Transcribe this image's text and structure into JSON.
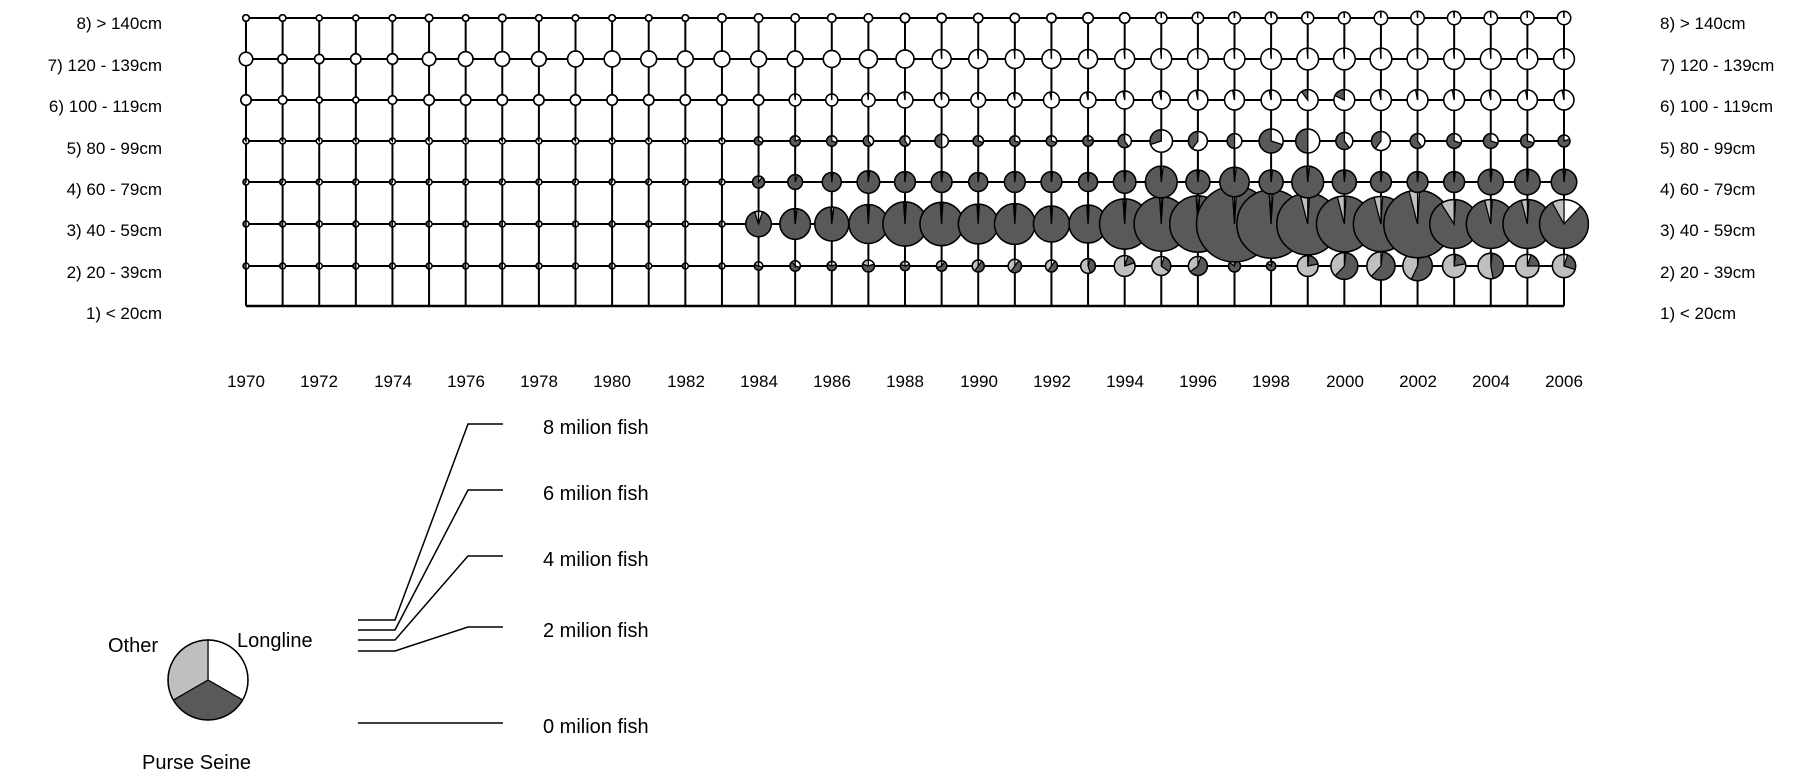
{
  "chart_data": {
    "type": "bubble-pie",
    "rows": [
      "1) < 20cm",
      "2) 20 - 39cm",
      "3) 40 - 59cm",
      "4) 60 - 79cm",
      "5) 80 - 99cm",
      "6) 100 - 119cm",
      "7) 120 - 139cm",
      "8) > 140cm"
    ],
    "years": [
      1970,
      1971,
      1972,
      1973,
      1974,
      1975,
      1976,
      1977,
      1978,
      1979,
      1980,
      1981,
      1982,
      1983,
      1984,
      1985,
      1986,
      1987,
      1988,
      1989,
      1990,
      1991,
      1992,
      1993,
      1994,
      1995,
      1996,
      1997,
      1998,
      1999,
      2000,
      2001,
      2002,
      2003,
      2004,
      2005,
      2006
    ],
    "year_tick_labels": [
      "1970",
      "1972",
      "1974",
      "1976",
      "1978",
      "1980",
      "1982",
      "1984",
      "1986",
      "1988",
      "1990",
      "1992",
      "1994",
      "1996",
      "1998",
      "2000",
      "2002",
      "2004",
      "2006"
    ],
    "legend_gears": [
      {
        "name": "Longline",
        "color": "#ffffff"
      },
      {
        "name": "Purse Seine",
        "color": "#595959"
      },
      {
        "name": "Other",
        "color": "#bfbfbf"
      }
    ],
    "size_legend": [
      {
        "label": "8 milion fish",
        "value": 8
      },
      {
        "label": "6 milion fish",
        "value": 6
      },
      {
        "label": "4 milion fish",
        "value": 4
      },
      {
        "label": "2 milion fish",
        "value": 2
      },
      {
        "label": "0 milion fish",
        "value": 0
      }
    ],
    "unit": "milion fish",
    "series": [
      {
        "row": "2) 20 - 39cm",
        "totals": [
          0.03,
          0.03,
          0.03,
          0.03,
          0.03,
          0.03,
          0.03,
          0.04,
          0.04,
          0.04,
          0.04,
          0.04,
          0.04,
          0.03,
          0.1,
          0.15,
          0.12,
          0.2,
          0.12,
          0.15,
          0.2,
          0.25,
          0.2,
          0.3,
          0.6,
          0.5,
          0.5,
          0.2,
          0.12,
          0.6,
          1.0,
          1.1,
          1.2,
          0.75,
          0.9,
          0.75,
          0.75
        ],
        "longline_share": [
          0.5,
          0.5,
          0.5,
          0.5,
          0.5,
          0.5,
          0.5,
          0.5,
          0.5,
          0.5,
          0.5,
          0.5,
          0.5,
          0.5,
          0.3,
          0.3,
          0.2,
          0.2,
          0.2,
          0.1,
          0.1,
          0.1,
          0.1,
          0.05,
          0.05,
          0.05,
          0.05,
          0.05,
          0.05,
          0.02,
          0.02,
          0.02,
          0.02,
          0.02,
          0.02,
          0.05,
          0.05
        ],
        "purse_seine_share": [
          0.5,
          0.5,
          0.5,
          0.5,
          0.5,
          0.5,
          0.5,
          0.5,
          0.5,
          0.5,
          0.5,
          0.5,
          0.5,
          0.5,
          0.5,
          0.6,
          0.6,
          0.6,
          0.6,
          0.6,
          0.5,
          0.5,
          0.5,
          0.4,
          0.15,
          0.3,
          0.6,
          0.8,
          0.8,
          0.2,
          0.6,
          0.6,
          0.55,
          0.2,
          0.45,
          0.2,
          0.25
        ]
      },
      {
        "row": "3) 40 - 59cm",
        "totals": [
          0.01,
          0.01,
          0.01,
          0.01,
          0.01,
          0.01,
          0.01,
          0.01,
          0.01,
          0.01,
          0.01,
          0.01,
          0.01,
          0.01,
          0.9,
          1.3,
          1.6,
          2.1,
          2.7,
          2.6,
          2.2,
          2.3,
          1.8,
          2.0,
          3.5,
          4.1,
          4.4,
          8.0,
          6.5,
          5.3,
          4.3,
          4.2,
          6.3,
          3.3,
          3.3,
          3.3,
          3.3
        ],
        "longline_share": [
          0.5,
          0.5,
          0.5,
          0.5,
          0.5,
          0.5,
          0.5,
          0.5,
          0.5,
          0.5,
          0.5,
          0.5,
          0.5,
          0.5,
          0.05,
          0.02,
          0.02,
          0.01,
          0.01,
          0.01,
          0.01,
          0.01,
          0.01,
          0.01,
          0.01,
          0.01,
          0.01,
          0.01,
          0.01,
          0.01,
          0.01,
          0.01,
          0.01,
          0.01,
          0.01,
          0.01,
          0.12
        ],
        "purse_seine_share": [
          0.5,
          0.5,
          0.5,
          0.5,
          0.5,
          0.5,
          0.5,
          0.5,
          0.5,
          0.5,
          0.5,
          0.5,
          0.5,
          0.5,
          0.9,
          0.97,
          0.97,
          0.98,
          0.98,
          0.98,
          0.98,
          0.98,
          0.98,
          0.98,
          0.98,
          0.98,
          0.98,
          0.98,
          0.98,
          0.95,
          0.95,
          0.95,
          0.95,
          0.9,
          0.95,
          0.95,
          0.8
        ]
      },
      {
        "row": "4) 60 - 79cm",
        "totals": [
          0.01,
          0.01,
          0.01,
          0.01,
          0.01,
          0.01,
          0.01,
          0.01,
          0.01,
          0.01,
          0.01,
          0.01,
          0.01,
          0.01,
          0.2,
          0.3,
          0.5,
          0.7,
          0.6,
          0.6,
          0.5,
          0.6,
          0.6,
          0.5,
          0.7,
          1.4,
          0.8,
          1.2,
          0.8,
          1.4,
          0.8,
          0.6,
          0.6,
          0.6,
          0.9,
          0.9,
          0.9
        ],
        "longline_share": [
          0.6,
          0.6,
          0.6,
          0.6,
          0.6,
          0.6,
          0.6,
          0.6,
          0.6,
          0.6,
          0.6,
          0.6,
          0.6,
          0.6,
          0.1,
          0.05,
          0.02,
          0.02,
          0.02,
          0.02,
          0.02,
          0.02,
          0.02,
          0.02,
          0.02,
          0.02,
          0.02,
          0.02,
          0.02,
          0.02,
          0.02,
          0.02,
          0.02,
          0.02,
          0.02,
          0.02,
          0.02
        ],
        "purse_seine_share": [
          0.4,
          0.4,
          0.4,
          0.4,
          0.4,
          0.4,
          0.4,
          0.4,
          0.4,
          0.4,
          0.4,
          0.4,
          0.4,
          0.4,
          0.9,
          0.95,
          0.97,
          0.97,
          0.97,
          0.97,
          0.97,
          0.97,
          0.97,
          0.97,
          0.97,
          0.97,
          0.97,
          0.97,
          0.97,
          0.97,
          0.97,
          0.97,
          0.97,
          0.97,
          0.97,
          0.97,
          0.97
        ]
      },
      {
        "row": "5) 80 - 99cm",
        "totals": [
          0.03,
          0.03,
          0.02,
          0.03,
          0.03,
          0.06,
          0.05,
          0.03,
          0.03,
          0.06,
          0.04,
          0.05,
          0.05,
          0.05,
          0.1,
          0.15,
          0.15,
          0.15,
          0.15,
          0.25,
          0.15,
          0.15,
          0.15,
          0.15,
          0.25,
          0.7,
          0.5,
          0.3,
          0.8,
          0.8,
          0.4,
          0.5,
          0.3,
          0.3,
          0.3,
          0.25,
          0.2
        ],
        "longline_share": [
          0.9,
          0.9,
          0.9,
          0.9,
          0.9,
          0.9,
          0.9,
          0.9,
          0.9,
          0.9,
          0.9,
          0.9,
          0.9,
          0.9,
          0.3,
          0.2,
          0.3,
          0.4,
          0.4,
          0.5,
          0.3,
          0.3,
          0.3,
          0.2,
          0.4,
          0.7,
          0.6,
          0.5,
          0.3,
          0.5,
          0.4,
          0.6,
          0.4,
          0.3,
          0.3,
          0.3,
          0.2
        ],
        "purse_seine_share": [
          0.1,
          0.1,
          0.1,
          0.1,
          0.1,
          0.1,
          0.1,
          0.1,
          0.1,
          0.1,
          0.1,
          0.1,
          0.1,
          0.1,
          0.7,
          0.8,
          0.7,
          0.6,
          0.6,
          0.5,
          0.7,
          0.7,
          0.7,
          0.8,
          0.6,
          0.3,
          0.4,
          0.5,
          0.7,
          0.5,
          0.6,
          0.4,
          0.6,
          0.7,
          0.7,
          0.7,
          0.8
        ]
      },
      {
        "row": "6) 100 - 119cm",
        "totals": [
          0.15,
          0.1,
          0.05,
          0.05,
          0.1,
          0.15,
          0.15,
          0.15,
          0.15,
          0.15,
          0.15,
          0.15,
          0.15,
          0.15,
          0.15,
          0.2,
          0.2,
          0.25,
          0.35,
          0.3,
          0.3,
          0.3,
          0.35,
          0.35,
          0.45,
          0.45,
          0.55,
          0.55,
          0.55,
          0.6,
          0.6,
          0.6,
          0.6,
          0.6,
          0.55,
          0.55,
          0.55
        ],
        "longline_share": [
          1,
          1,
          1,
          1,
          1,
          1,
          1,
          1,
          1,
          1,
          1,
          1,
          1,
          1,
          1,
          0.99,
          0.99,
          0.98,
          0.98,
          0.98,
          0.98,
          0.97,
          0.97,
          0.97,
          0.97,
          0.97,
          0.97,
          0.97,
          0.97,
          0.9,
          0.82,
          0.97,
          0.97,
          0.97,
          0.97,
          0.97,
          0.97
        ],
        "purse_seine_share": [
          0,
          0,
          0,
          0,
          0,
          0,
          0,
          0,
          0,
          0,
          0,
          0,
          0,
          0,
          0,
          0.01,
          0.01,
          0.02,
          0.02,
          0.02,
          0.02,
          0.03,
          0.03,
          0.03,
          0.03,
          0.03,
          0.03,
          0.03,
          0.03,
          0.1,
          0.18,
          0.03,
          0.03,
          0.03,
          0.03,
          0.03,
          0.03
        ]
      },
      {
        "row": "7) 120 - 139cm",
        "totals": [
          0.25,
          0.12,
          0.12,
          0.15,
          0.15,
          0.25,
          0.3,
          0.3,
          0.3,
          0.35,
          0.35,
          0.35,
          0.35,
          0.35,
          0.35,
          0.35,
          0.4,
          0.45,
          0.45,
          0.5,
          0.5,
          0.5,
          0.5,
          0.5,
          0.55,
          0.6,
          0.6,
          0.6,
          0.6,
          0.65,
          0.65,
          0.65,
          0.6,
          0.6,
          0.6,
          0.6,
          0.6
        ],
        "longline_share": [
          1,
          1,
          1,
          1,
          1,
          1,
          1,
          1,
          1,
          1,
          1,
          1,
          1,
          1,
          1,
          1,
          1,
          1,
          1,
          0.99,
          0.99,
          0.99,
          0.99,
          0.99,
          0.99,
          0.99,
          0.99,
          0.99,
          0.99,
          0.99,
          0.99,
          0.99,
          0.99,
          0.99,
          0.99,
          0.99,
          0.99
        ],
        "purse_seine_share": [
          0,
          0,
          0,
          0,
          0,
          0,
          0,
          0,
          0,
          0,
          0,
          0,
          0,
          0,
          0,
          0,
          0,
          0,
          0,
          0.01,
          0.01,
          0.01,
          0.01,
          0.01,
          0.01,
          0.01,
          0.01,
          0.01,
          0.01,
          0.01,
          0.01,
          0.01,
          0.01,
          0.01,
          0.01,
          0.01,
          0.01
        ]
      },
      {
        "row": "8) > 140cm",
        "totals": [
          0.06,
          0.06,
          0.04,
          0.03,
          0.06,
          0.08,
          0.06,
          0.08,
          0.06,
          0.06,
          0.06,
          0.06,
          0.06,
          0.1,
          0.1,
          0.1,
          0.1,
          0.1,
          0.12,
          0.12,
          0.12,
          0.12,
          0.12,
          0.15,
          0.15,
          0.18,
          0.18,
          0.2,
          0.2,
          0.2,
          0.2,
          0.25,
          0.25,
          0.25,
          0.25,
          0.25,
          0.25
        ],
        "longline_share": [
          1,
          1,
          1,
          1,
          1,
          1,
          1,
          1,
          1,
          1,
          1,
          1,
          1,
          1,
          1,
          1,
          1,
          1,
          1,
          1,
          1,
          1,
          1,
          1,
          1,
          0.99,
          0.99,
          0.99,
          0.99,
          0.99,
          0.99,
          0.99,
          0.99,
          0.99,
          0.99,
          0.99,
          0.99
        ],
        "purse_seine_share": [
          0,
          0,
          0,
          0,
          0,
          0,
          0,
          0,
          0,
          0,
          0,
          0,
          0,
          0,
          0,
          0,
          0,
          0,
          0,
          0,
          0,
          0,
          0,
          0,
          0,
          0.01,
          0.01,
          0.01,
          0.01,
          0.01,
          0.01,
          0.01,
          0.01,
          0.01,
          0.01,
          0.01,
          0.01
        ]
      }
    ]
  }
}
